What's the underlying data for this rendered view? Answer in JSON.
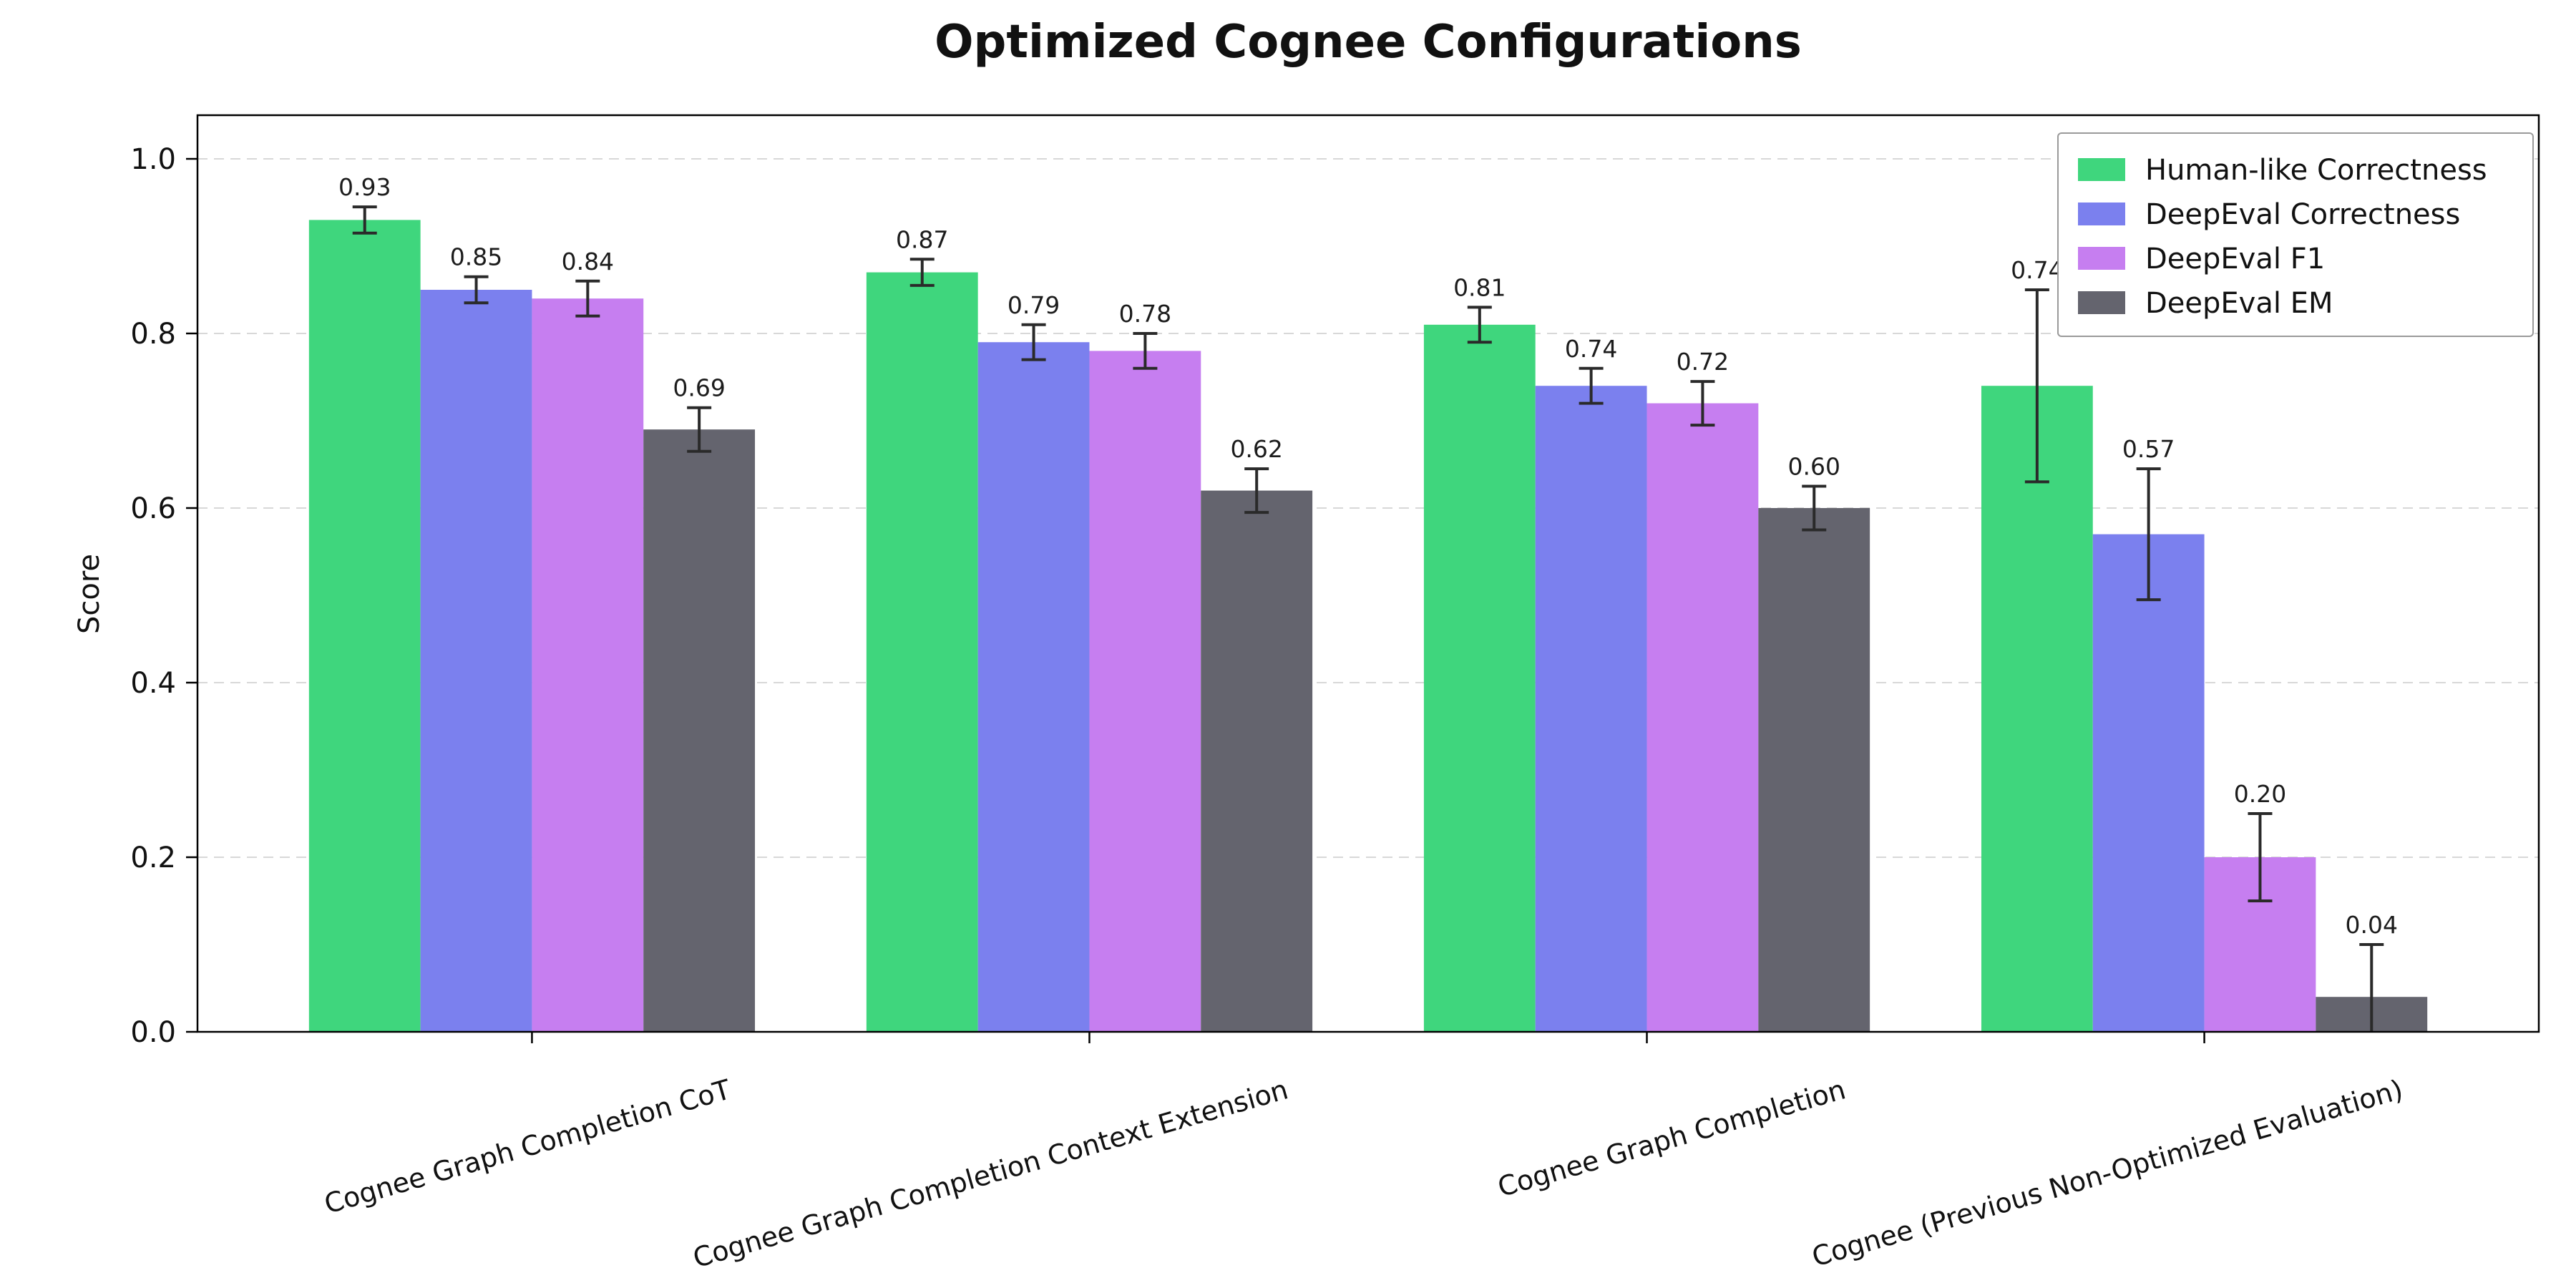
{
  "chart_data": {
    "type": "bar",
    "title": "Optimized Cognee Configurations",
    "ylabel": "Score",
    "ylim": [
      0,
      1.05
    ],
    "yticks": [
      0.0,
      0.2,
      0.4,
      0.6,
      0.8,
      1.0
    ],
    "grid": "horizontal-dashed",
    "legend_position": "upper-right",
    "categories": [
      "Cognee Graph Completion CoT",
      "Cognee Graph Completion Context Extension",
      "Cognee Graph Completion",
      "Cognee (Previous Non-Optimized Evaluation)"
    ],
    "series": [
      {
        "name": "Human-like Correctness",
        "color": "#3fd67d",
        "values": [
          0.93,
          0.87,
          0.81,
          0.74
        ],
        "errors": [
          0.015,
          0.015,
          0.02,
          0.11
        ]
      },
      {
        "name": "DeepEval Correctness",
        "color": "#7b80ee",
        "values": [
          0.85,
          0.79,
          0.74,
          0.57
        ],
        "errors": [
          0.015,
          0.02,
          0.02,
          0.075
        ]
      },
      {
        "name": "DeepEval F1",
        "color": "#c67ef0",
        "values": [
          0.84,
          0.78,
          0.72,
          0.2
        ],
        "errors": [
          0.02,
          0.02,
          0.025,
          0.05
        ]
      },
      {
        "name": "DeepEval EM",
        "color": "#64646e",
        "values": [
          0.69,
          0.62,
          0.6,
          0.04
        ],
        "errors": [
          0.025,
          0.025,
          0.025,
          0.06
        ]
      }
    ],
    "error_bar_color": "#2a2a2a",
    "grid_color": "#d8d8d8"
  }
}
